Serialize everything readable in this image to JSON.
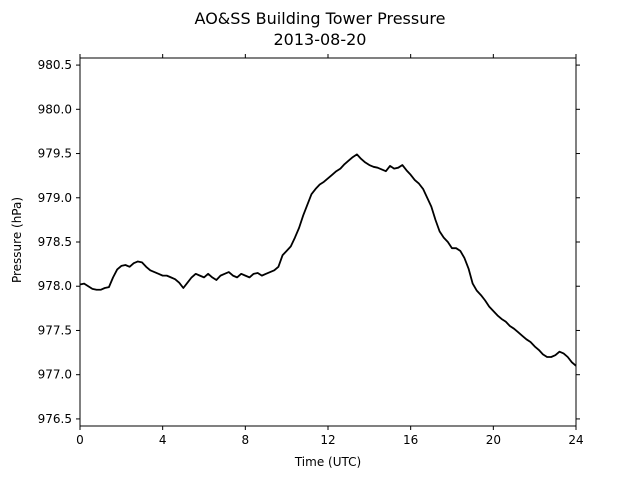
{
  "chart_data": {
    "type": "line",
    "title": "AO&SS Building Tower Pressure",
    "subtitle": "2013-08-20",
    "xlabel": "Time (UTC)",
    "ylabel": "Pressure (hPa)",
    "xlim": [
      0,
      24
    ],
    "ylim": [
      976.42,
      980.58
    ],
    "xticks": [
      0,
      4,
      8,
      12,
      16,
      20,
      24
    ],
    "yticks": [
      976.5,
      977.0,
      977.5,
      978.0,
      978.5,
      979.0,
      979.5,
      980.0,
      980.5
    ],
    "ytick_labels": [
      "976.5",
      "977.0",
      "977.5",
      "978.0",
      "978.5",
      "979.0",
      "979.5",
      "980.0",
      "980.5"
    ],
    "grid": false,
    "legend": "none",
    "line_color": "#000000",
    "series": [
      {
        "x": [
          0,
          0.2,
          0.4,
          0.6,
          0.8,
          1.0,
          1.2,
          1.4,
          1.6,
          1.8,
          2.0,
          2.2,
          2.4,
          2.6,
          2.8,
          3.0,
          3.2,
          3.4,
          3.6,
          3.8,
          4.0,
          4.2,
          4.4,
          4.6,
          4.8,
          5.0,
          5.2,
          5.4,
          5.6,
          5.8,
          6.0,
          6.2,
          6.4,
          6.6,
          6.8,
          7.0,
          7.2,
          7.4,
          7.6,
          7.8,
          8.0,
          8.2,
          8.4,
          8.6,
          8.8,
          9.0,
          9.2,
          9.4,
          9.6,
          9.8,
          10.0,
          10.2,
          10.4,
          10.6,
          10.8,
          11.0,
          11.2,
          11.4,
          11.6,
          11.8,
          12.0,
          12.2,
          12.4,
          12.6,
          12.8,
          13.0,
          13.2,
          13.4,
          13.6,
          13.8,
          14.0,
          14.2,
          14.4,
          14.6,
          14.8,
          15.0,
          15.2,
          15.4,
          15.6,
          15.8,
          16.0,
          16.2,
          16.4,
          16.6,
          16.8,
          17.0,
          17.2,
          17.4,
          17.6,
          17.8,
          18.0,
          18.2,
          18.4,
          18.6,
          18.8,
          19.0,
          19.2,
          19.4,
          19.6,
          19.8,
          20.0,
          20.2,
          20.4,
          20.6,
          20.8,
          21.0,
          21.2,
          21.4,
          21.6,
          21.8,
          22.0,
          22.2,
          22.4,
          22.6,
          22.8,
          23.0,
          23.2,
          23.4,
          23.6,
          23.8,
          24.0
        ],
        "y": [
          978.02,
          978.03,
          978.0,
          977.97,
          977.96,
          977.96,
          977.98,
          977.99,
          978.1,
          978.19,
          978.23,
          978.24,
          978.22,
          978.26,
          978.28,
          978.27,
          978.22,
          978.18,
          978.16,
          978.14,
          978.12,
          978.12,
          978.1,
          978.08,
          978.04,
          977.98,
          978.04,
          978.1,
          978.14,
          978.12,
          978.1,
          978.14,
          978.1,
          978.07,
          978.12,
          978.14,
          978.16,
          978.12,
          978.1,
          978.14,
          978.12,
          978.1,
          978.14,
          978.15,
          978.12,
          978.14,
          978.16,
          978.18,
          978.22,
          978.35,
          978.4,
          978.45,
          978.55,
          978.66,
          978.8,
          978.92,
          979.04,
          979.1,
          979.15,
          979.18,
          979.22,
          979.26,
          979.3,
          979.33,
          979.38,
          979.42,
          979.46,
          979.49,
          979.44,
          979.4,
          979.37,
          979.35,
          979.34,
          979.32,
          979.3,
          979.36,
          979.33,
          979.34,
          979.37,
          979.31,
          979.26,
          979.2,
          979.16,
          979.1,
          979.0,
          978.9,
          978.75,
          978.62,
          978.55,
          978.5,
          978.43,
          978.43,
          978.4,
          978.32,
          978.2,
          978.03,
          977.95,
          977.9,
          977.84,
          977.77,
          977.72,
          977.67,
          977.63,
          977.6,
          977.55,
          977.52,
          977.48,
          977.44,
          977.4,
          977.37,
          977.32,
          977.28,
          977.23,
          977.2,
          977.2,
          977.22,
          977.26,
          977.24,
          977.2,
          977.14,
          977.1
        ]
      }
    ]
  }
}
